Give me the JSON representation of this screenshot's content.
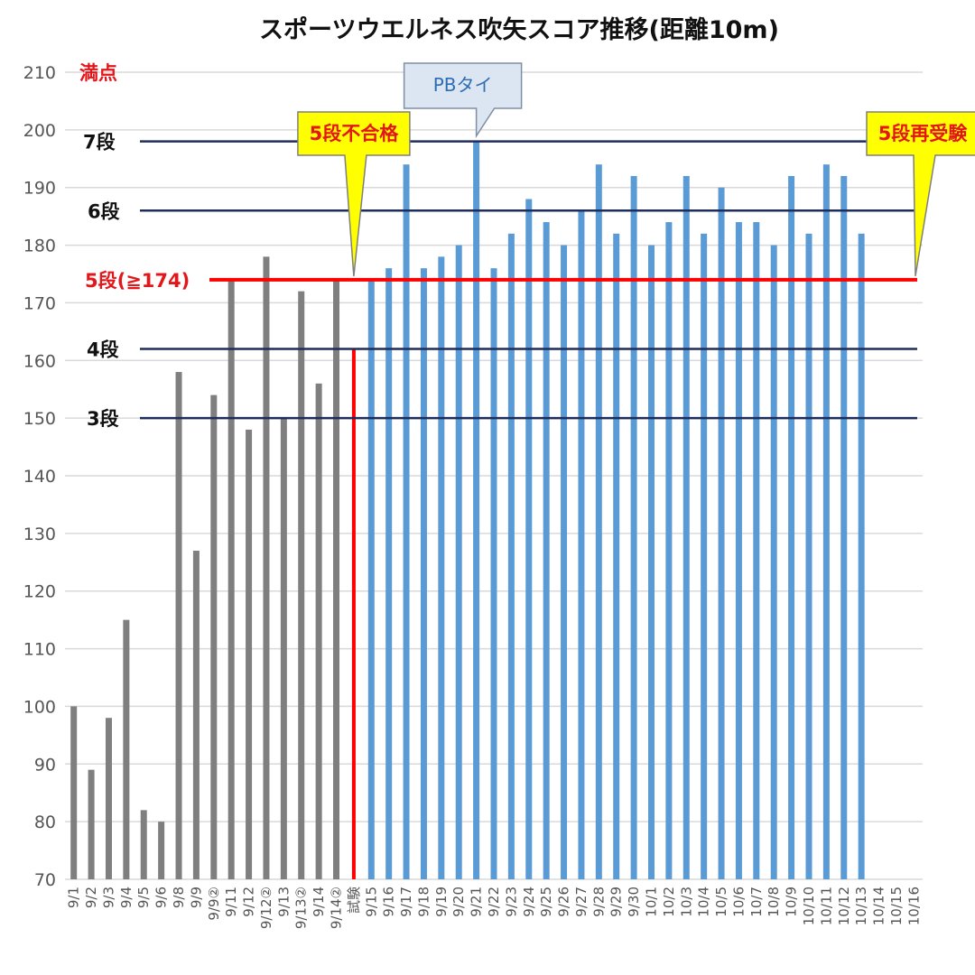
{
  "chart_data": {
    "type": "bar",
    "title": "スポーツウエルネス吹矢スコア推移(距離10m)",
    "ylim": [
      70,
      210
    ],
    "yticks": [
      70,
      80,
      90,
      100,
      110,
      120,
      130,
      140,
      150,
      160,
      170,
      180,
      190,
      200,
      210
    ],
    "grid": true,
    "categories": [
      "9/1",
      "9/2",
      "9/3",
      "9/4",
      "9/5",
      "9/6",
      "9/8",
      "9/9",
      "9/9②",
      "9/11",
      "9/12",
      "9/12②",
      "9/13",
      "9/13②",
      "9/14",
      "9/14②",
      "試験",
      "9/15",
      "9/16",
      "9/17",
      "9/18",
      "9/19",
      "9/20",
      "9/21",
      "9/22",
      "9/23",
      "9/24",
      "9/25",
      "9/26",
      "9/27",
      "9/28",
      "9/29",
      "9/30",
      "10/1",
      "10/2",
      "10/3",
      "10/4",
      "10/5",
      "10/6",
      "10/7",
      "10/8",
      "10/9",
      "10/10",
      "10/11",
      "10/12",
      "10/13",
      "10/14",
      "10/15",
      "10/16"
    ],
    "values": [
      100,
      89,
      98,
      115,
      82,
      80,
      158,
      127,
      154,
      174,
      148,
      178,
      150,
      172,
      156,
      174,
      162,
      174,
      176,
      194,
      176,
      178,
      180,
      198,
      176,
      182,
      188,
      184,
      180,
      186,
      194,
      182,
      192,
      180,
      184,
      192,
      182,
      190,
      184,
      184,
      180,
      192,
      182,
      194,
      192,
      182,
      null,
      null,
      null
    ],
    "bar_colors": {
      "before_exam": "#7f7f7f",
      "exam": "#ff0000",
      "after_exam": "#5b9bd5"
    },
    "exam_index": 16,
    "reference_lines": [
      {
        "label": "満点",
        "value": 210,
        "color": "#d0d0d0",
        "label_color": "#e3161a"
      },
      {
        "label": "7段",
        "value": 198,
        "color": "#1f2d5c",
        "label_color": "#111111"
      },
      {
        "label": "6段",
        "value": 186,
        "color": "#1f2d5c",
        "label_color": "#111111"
      },
      {
        "label": "5段(≧174)",
        "value": 174,
        "color": "#ff0000",
        "label_color": "#e3161a"
      },
      {
        "label": "4段",
        "value": 162,
        "color": "#1f2d5c",
        "label_color": "#111111"
      },
      {
        "label": "3段",
        "value": 150,
        "color": "#1f2d5c",
        "label_color": "#111111"
      }
    ],
    "annotations": [
      {
        "text": "5段不合格",
        "style": "yellow-callout",
        "target_category": "試験",
        "target_value": 174
      },
      {
        "text": "PBタイ",
        "style": "blue-callout",
        "target_category": "9/21",
        "target_value": 198
      },
      {
        "text": "5段再受験",
        "style": "yellow-callout",
        "target_category": "10/16",
        "target_value": 174
      }
    ]
  }
}
